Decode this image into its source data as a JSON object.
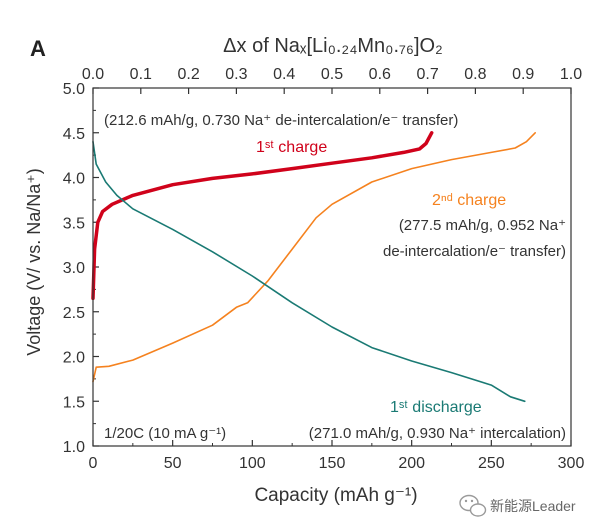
{
  "chart_data": {
    "type": "line",
    "panel_label": "A",
    "xlabel": "Capacity (mAh g⁻¹)",
    "ylabel": "Voltage (V/ vs. Na/Na⁺)",
    "x2label": "Δx of Naₓ[Li₀.₂₄Mn₀.₇₆]O₂",
    "xlim": [
      0,
      300
    ],
    "ylim": [
      1.0,
      5.0
    ],
    "x2lim": [
      0.0,
      1.0
    ],
    "xticks": [
      "0",
      "50",
      "100",
      "150",
      "200",
      "250",
      "300"
    ],
    "yticks": [
      "1.0",
      "1.5",
      "2.0",
      "2.5",
      "3.0",
      "3.5",
      "4.0",
      "4.5",
      "5.0"
    ],
    "x2ticks": [
      "0.0",
      "0.1",
      "0.2",
      "0.3",
      "0.4",
      "0.5",
      "0.6",
      "0.7",
      "0.8",
      "0.9",
      "1.0"
    ],
    "series": [
      {
        "key": "first_charge",
        "color": "#d0021b",
        "width": 3.5,
        "points": [
          [
            0,
            2.65
          ],
          [
            1,
            3.2
          ],
          [
            3,
            3.5
          ],
          [
            6,
            3.62
          ],
          [
            12,
            3.7
          ],
          [
            25,
            3.8
          ],
          [
            50,
            3.92
          ],
          [
            75,
            3.99
          ],
          [
            100,
            4.04
          ],
          [
            125,
            4.1
          ],
          [
            150,
            4.16
          ],
          [
            175,
            4.22
          ],
          [
            195,
            4.28
          ],
          [
            205,
            4.32
          ],
          [
            209,
            4.38
          ],
          [
            212.6,
            4.5
          ]
        ]
      },
      {
        "key": "second_charge",
        "color": "#f5821f",
        "width": 1.6,
        "points": [
          [
            0,
            1.72
          ],
          [
            2,
            1.88
          ],
          [
            10,
            1.89
          ],
          [
            25,
            1.96
          ],
          [
            50,
            2.15
          ],
          [
            75,
            2.35
          ],
          [
            90,
            2.55
          ],
          [
            97,
            2.6
          ],
          [
            110,
            2.85
          ],
          [
            125,
            3.2
          ],
          [
            140,
            3.55
          ],
          [
            150,
            3.7
          ],
          [
            175,
            3.95
          ],
          [
            200,
            4.1
          ],
          [
            225,
            4.2
          ],
          [
            250,
            4.28
          ],
          [
            265,
            4.33
          ],
          [
            272,
            4.4
          ],
          [
            277.5,
            4.5
          ]
        ]
      },
      {
        "key": "first_discharge",
        "color": "#1a7a74",
        "width": 1.6,
        "points": [
          [
            0,
            4.4
          ],
          [
            2,
            4.15
          ],
          [
            8,
            3.95
          ],
          [
            15,
            3.8
          ],
          [
            25,
            3.65
          ],
          [
            50,
            3.42
          ],
          [
            75,
            3.17
          ],
          [
            100,
            2.9
          ],
          [
            125,
            2.6
          ],
          [
            150,
            2.33
          ],
          [
            175,
            2.1
          ],
          [
            200,
            1.95
          ],
          [
            225,
            1.82
          ],
          [
            250,
            1.68
          ],
          [
            262,
            1.55
          ],
          [
            271,
            1.5
          ]
        ]
      }
    ],
    "annotations": {
      "first_charge_capacity": "(212.6 mAh/g, 0.730 Na⁺ de-intercalation/e⁻ transfer)",
      "first_charge_label": "1ˢᵗ charge",
      "second_charge_label": "2ⁿᵈ  charge",
      "second_charge_capacity_1": "(277.5 mAh/g, 0.952 Na⁺",
      "second_charge_capacity_2": "de-intercalation/e⁻ transfer)",
      "first_discharge_label": "1ˢᵗ discharge",
      "first_discharge_capacity": "(271.0 mAh/g, 0.930 Na⁺ intercalation)",
      "rate": "1/20C (10 mA g⁻¹)"
    },
    "colors": {
      "first_charge": "#d0021b",
      "second_charge": "#f5821f",
      "first_discharge": "#1a7a74",
      "axis": "#333333"
    }
  },
  "watermark": {
    "text": "新能源Leader",
    "icon": "wechat-icon"
  }
}
